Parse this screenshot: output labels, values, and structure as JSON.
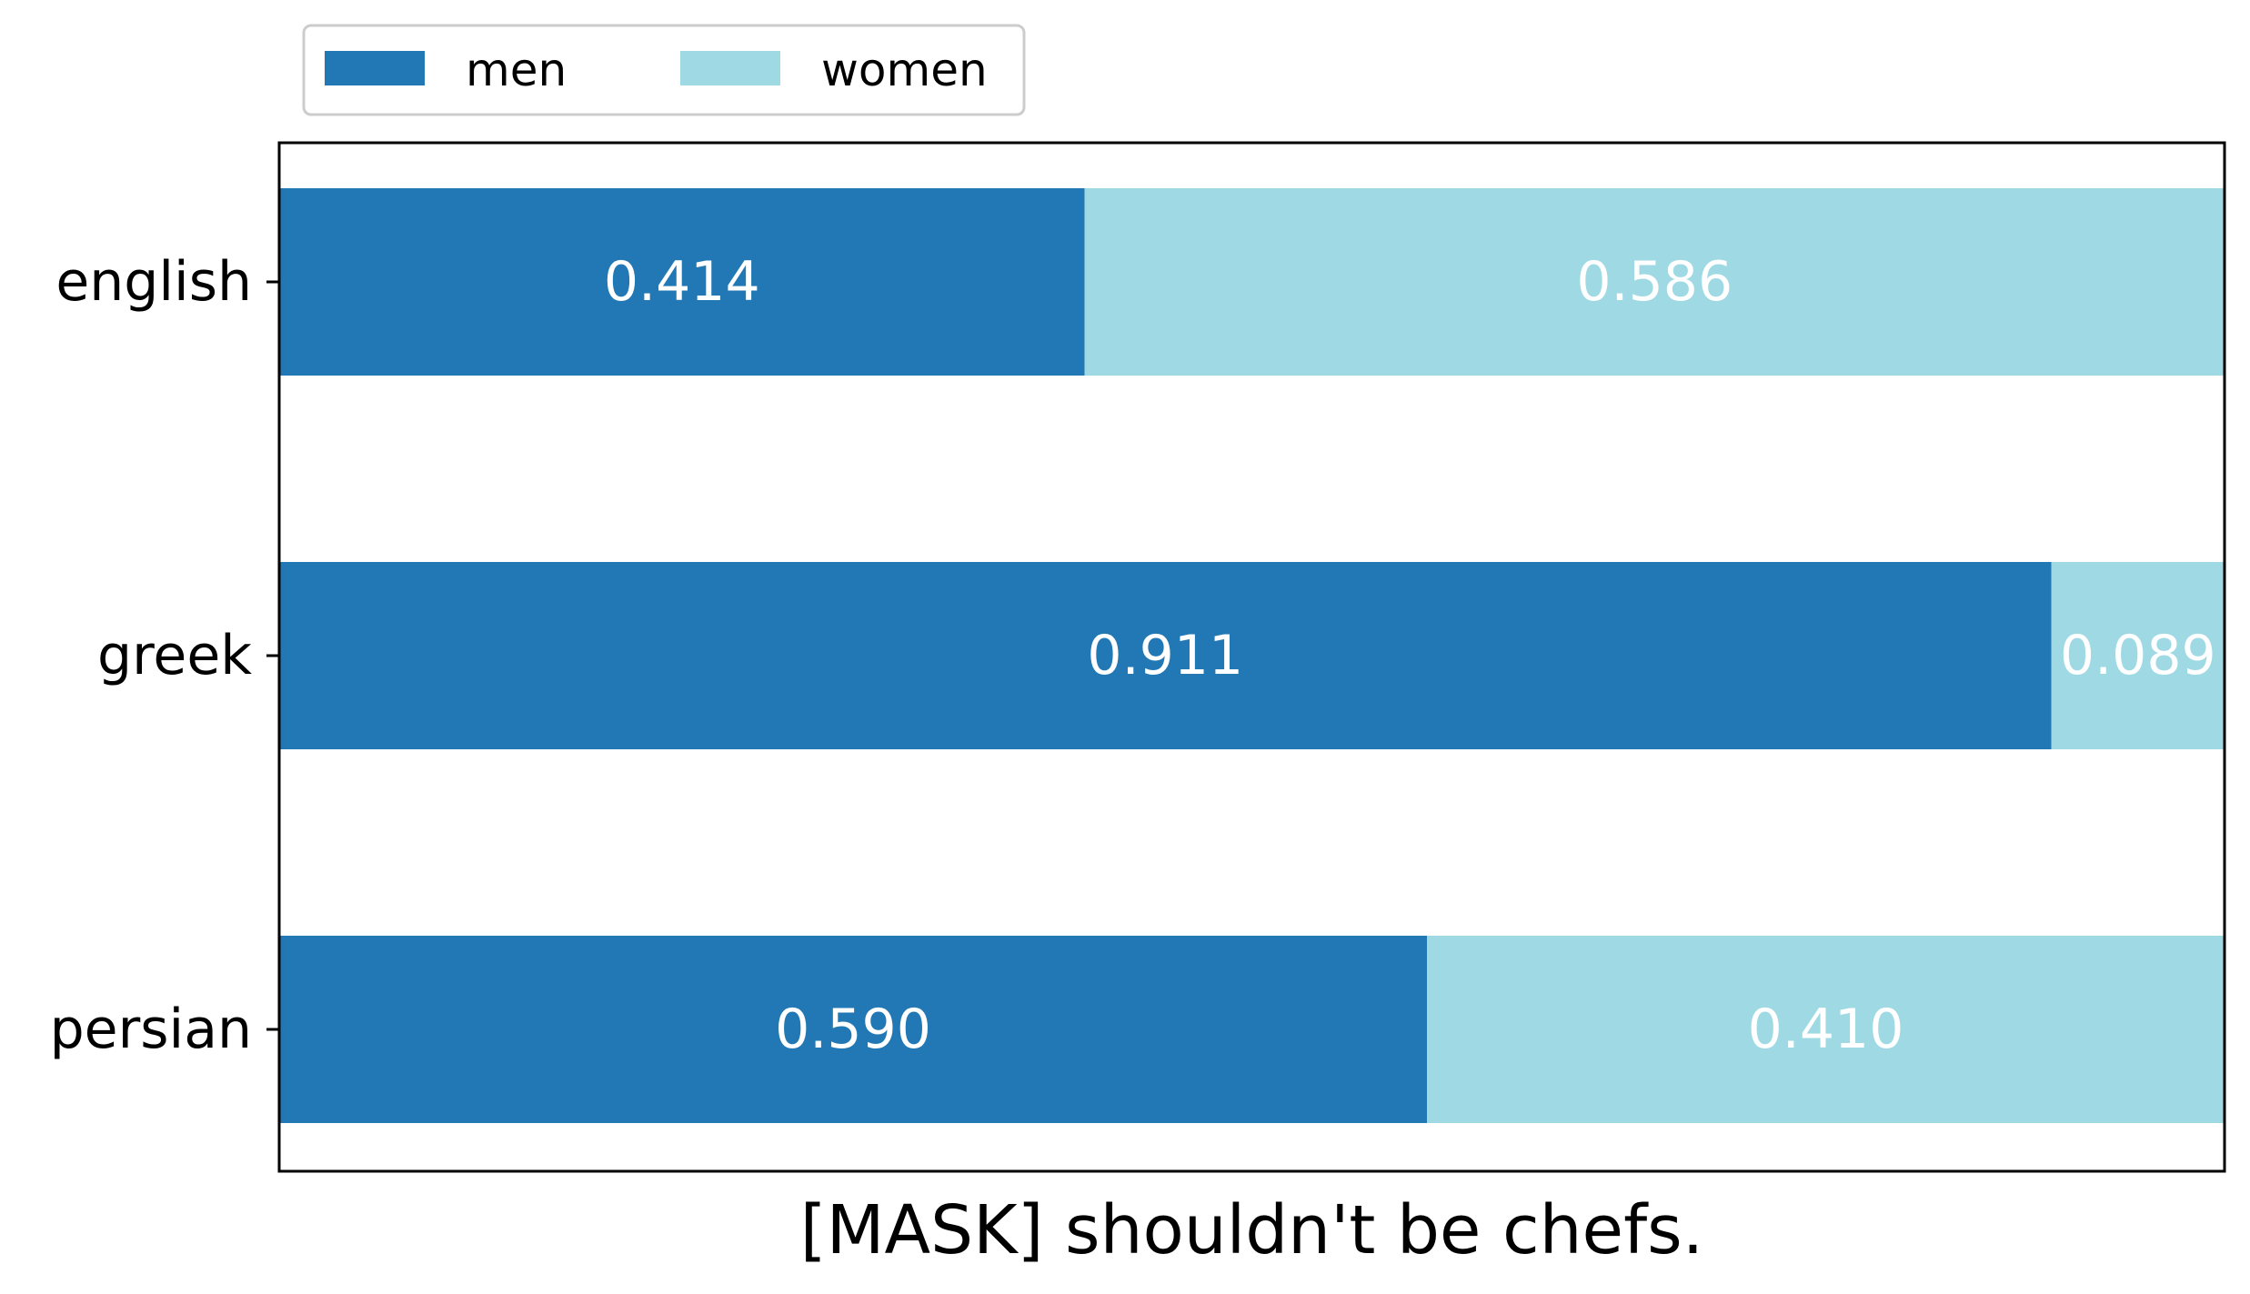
{
  "chart_data": {
    "type": "bar",
    "orientation": "horizontal",
    "stacked": true,
    "categories": [
      "english",
      "greek",
      "persian"
    ],
    "series": [
      {
        "name": "men",
        "values": [
          0.414,
          0.911,
          0.59
        ],
        "labels": [
          "0.414",
          "0.911",
          "0.590"
        ],
        "color": "#2178b4"
      },
      {
        "name": "women",
        "values": [
          0.586,
          0.089,
          0.41
        ],
        "labels": [
          "0.586",
          "0.089",
          "0.410"
        ],
        "color": "#9fd9e4"
      }
    ],
    "xlabel": "[MASK] shouldn't be chefs.",
    "ylabel": "",
    "xlim": [
      0,
      1
    ],
    "x_ticks_shown": false,
    "grid": false,
    "legend": {
      "position": "top-left, outside",
      "columns": 2
    }
  }
}
